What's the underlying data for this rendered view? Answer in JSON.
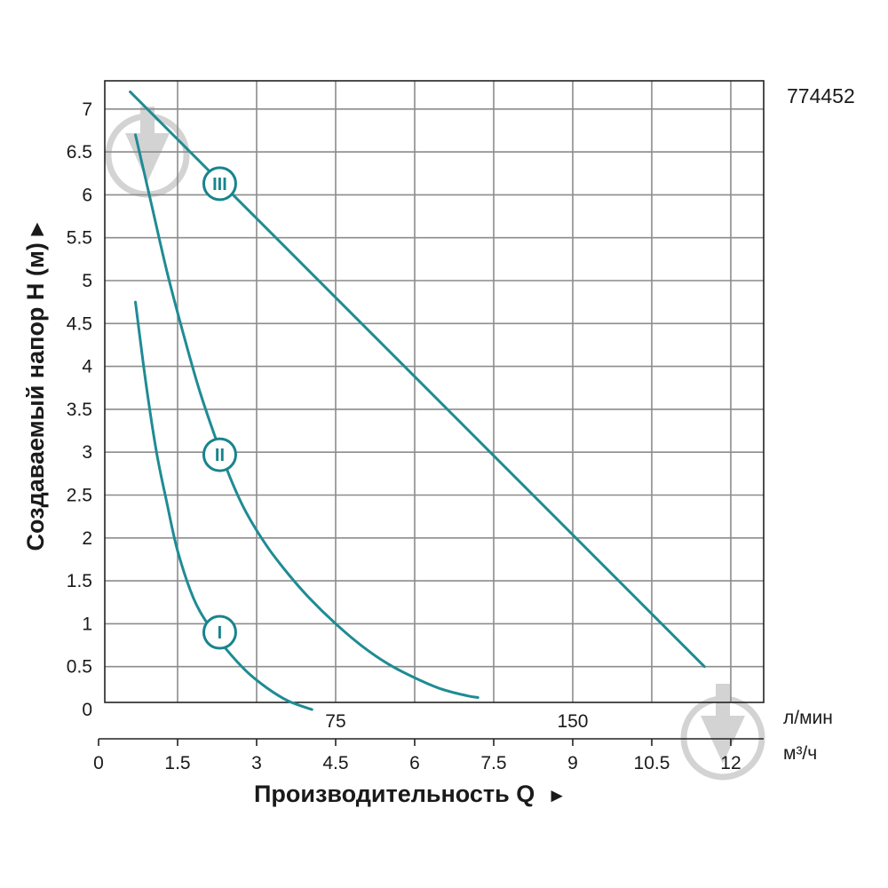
{
  "model_number": "774452",
  "colors": {
    "curve": "#1f8b94",
    "label": "#17848c",
    "grid": "#8c8c8c",
    "axis": "#222222"
  },
  "chart_data": {
    "type": "line",
    "title": "",
    "ylabel": "Создаваемый напор H (м)",
    "xlabel": "Производительность Q",
    "y_arrow": "▸",
    "x_arrow": "►",
    "ylim": [
      0,
      7.3
    ],
    "xlim_m3h": [
      0,
      12.5
    ],
    "y_ticks": [
      "0",
      "0.5",
      "1",
      "1.5",
      "2",
      "2.5",
      "3",
      "3.5",
      "4",
      "4.5",
      "5",
      "5.5",
      "6",
      "6.5",
      "7"
    ],
    "x_ticks_m3h": [
      "0",
      "1.5",
      "3",
      "4.5",
      "6",
      "7.5",
      "9",
      "10.5",
      "12"
    ],
    "x_ticks_lmin": [
      "75",
      "150"
    ],
    "units": {
      "lmin": "л/мин",
      "m3h": "м³/ч"
    },
    "grid": true,
    "series": [
      {
        "name": "I",
        "x": [
          0.7,
          0.9,
          1.1,
          1.3,
          1.5,
          1.8,
          2.1,
          2.4,
          2.8,
          3.2,
          3.6,
          4.05
        ],
        "y": [
          4.75,
          3.8,
          3.0,
          2.4,
          1.85,
          1.3,
          0.97,
          0.72,
          0.45,
          0.25,
          0.1,
          0.0
        ]
      },
      {
        "name": "II",
        "x": [
          0.7,
          1.0,
          1.3,
          1.6,
          1.9,
          2.2,
          2.5,
          2.8,
          3.2,
          3.6,
          4.0,
          4.5,
          5.0,
          5.5,
          6.0,
          6.5,
          7.0,
          7.2
        ],
        "y": [
          6.7,
          5.9,
          5.1,
          4.4,
          3.75,
          3.2,
          2.7,
          2.3,
          1.9,
          1.58,
          1.3,
          1.0,
          0.74,
          0.53,
          0.37,
          0.24,
          0.16,
          0.14
        ]
      },
      {
        "name": "III",
        "x": [
          0.6,
          11.5
        ],
        "y": [
          7.2,
          0.5
        ]
      }
    ],
    "curve_labels": [
      {
        "series": "I",
        "text": "I",
        "x": 2.3,
        "y": 0.9
      },
      {
        "series": "II",
        "text": "II",
        "x": 2.3,
        "y": 2.97
      },
      {
        "series": "III",
        "text": "III",
        "x": 2.3,
        "y": 6.13
      }
    ]
  }
}
